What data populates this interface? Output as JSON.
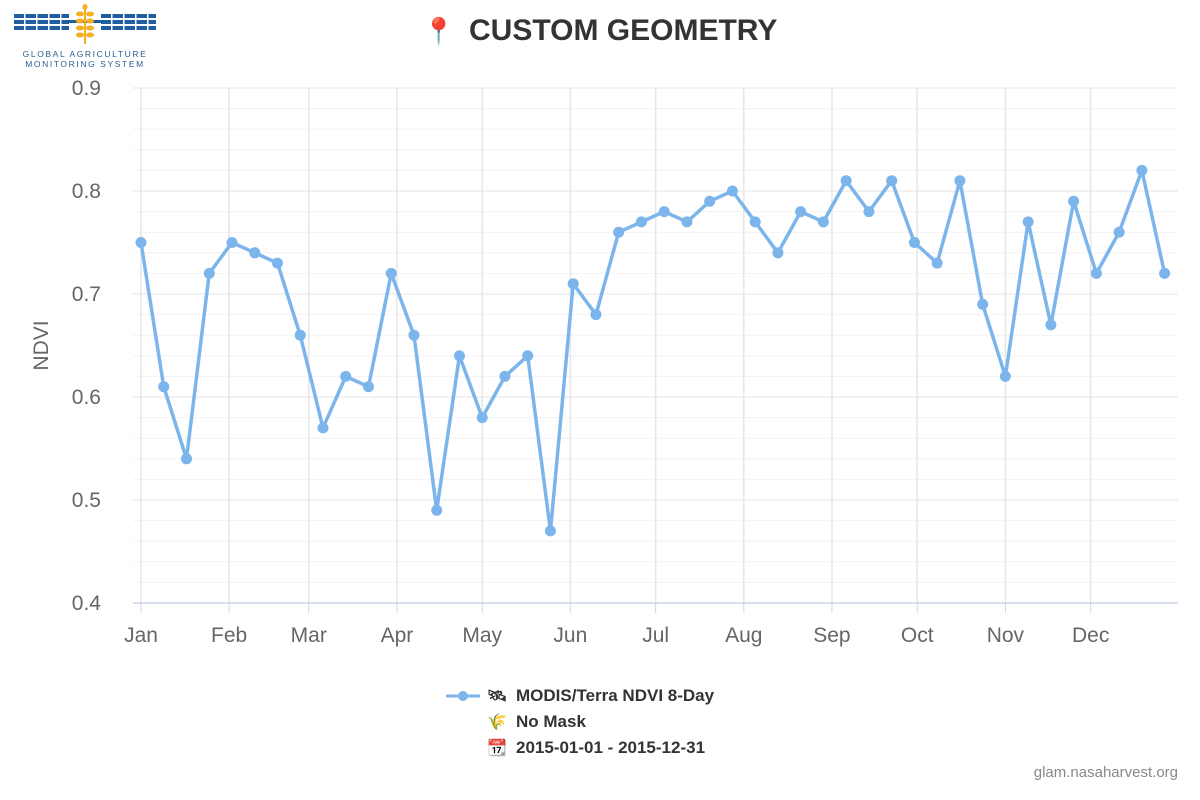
{
  "header": {
    "logo_line1": "GLOBAL AGRICULTURE",
    "logo_line2": "MONITORING SYSTEM",
    "title": "CUSTOM GEOMETRY",
    "title_icon": "map-pin-icon"
  },
  "legend": {
    "series_label": "MODIS/Terra NDVI 8-Day",
    "series_icon": "satellite-icon",
    "mask_label": "No Mask",
    "mask_icon": "crop-icon",
    "date_label": "2015-01-01 - 2015-12-31",
    "date_icon": "calendar-icon"
  },
  "credit": "glam.nasaharvest.org",
  "colors": {
    "series": "#7cb5ec",
    "grid": "#e6e6e6",
    "axis": "#ccd6eb",
    "accent": "#d22222"
  },
  "chart_data": {
    "type": "line",
    "ylabel": "NDVI",
    "xlabel": "",
    "ylim": [
      0.4,
      0.9
    ],
    "yticks": [
      "0.4",
      "0.5",
      "0.6",
      "0.7",
      "0.8",
      "0.9"
    ],
    "x_tick_labels": [
      "Jan",
      "Feb",
      "Mar",
      "Apr",
      "May",
      "Jun",
      "Jul",
      "Aug",
      "Sep",
      "Oct",
      "Nov",
      "Dec"
    ],
    "x_tick_dates": [
      "2015-01-01",
      "2015-02-01",
      "2015-03-01",
      "2015-04-01",
      "2015-05-01",
      "2015-06-01",
      "2015-07-01",
      "2015-08-01",
      "2015-09-01",
      "2015-10-01",
      "2015-11-01",
      "2015-12-01"
    ],
    "x_range": [
      "2015-01-01",
      "2015-12-31"
    ],
    "grid": true,
    "legend_position": "bottom-center",
    "series": [
      {
        "name": "MODIS/Terra NDVI 8-Day",
        "x": [
          "2015-01-01",
          "2015-01-09",
          "2015-01-17",
          "2015-01-25",
          "2015-02-02",
          "2015-02-10",
          "2015-02-18",
          "2015-02-26",
          "2015-03-06",
          "2015-03-14",
          "2015-03-22",
          "2015-03-30",
          "2015-04-07",
          "2015-04-15",
          "2015-04-23",
          "2015-05-01",
          "2015-05-09",
          "2015-05-17",
          "2015-05-25",
          "2015-06-02",
          "2015-06-10",
          "2015-06-18",
          "2015-06-26",
          "2015-07-04",
          "2015-07-12",
          "2015-07-20",
          "2015-07-28",
          "2015-08-05",
          "2015-08-13",
          "2015-08-21",
          "2015-08-29",
          "2015-09-06",
          "2015-09-14",
          "2015-09-22",
          "2015-09-30",
          "2015-10-08",
          "2015-10-16",
          "2015-10-24",
          "2015-11-01",
          "2015-11-09",
          "2015-11-17",
          "2015-11-25",
          "2015-12-03",
          "2015-12-11",
          "2015-12-19",
          "2015-12-27"
        ],
        "values": [
          0.75,
          0.61,
          0.54,
          0.72,
          0.75,
          0.74,
          0.73,
          0.66,
          0.57,
          0.62,
          0.61,
          0.72,
          0.66,
          0.49,
          0.64,
          0.58,
          0.62,
          0.64,
          0.47,
          0.71,
          0.68,
          0.76,
          0.77,
          0.78,
          0.77,
          0.79,
          0.8,
          0.77,
          0.74,
          0.78,
          0.77,
          0.81,
          0.78,
          0.81,
          0.75,
          0.73,
          0.81,
          0.69,
          0.62,
          0.77,
          0.67,
          0.79,
          0.72,
          0.76,
          0.82,
          0.72
        ]
      }
    ]
  }
}
